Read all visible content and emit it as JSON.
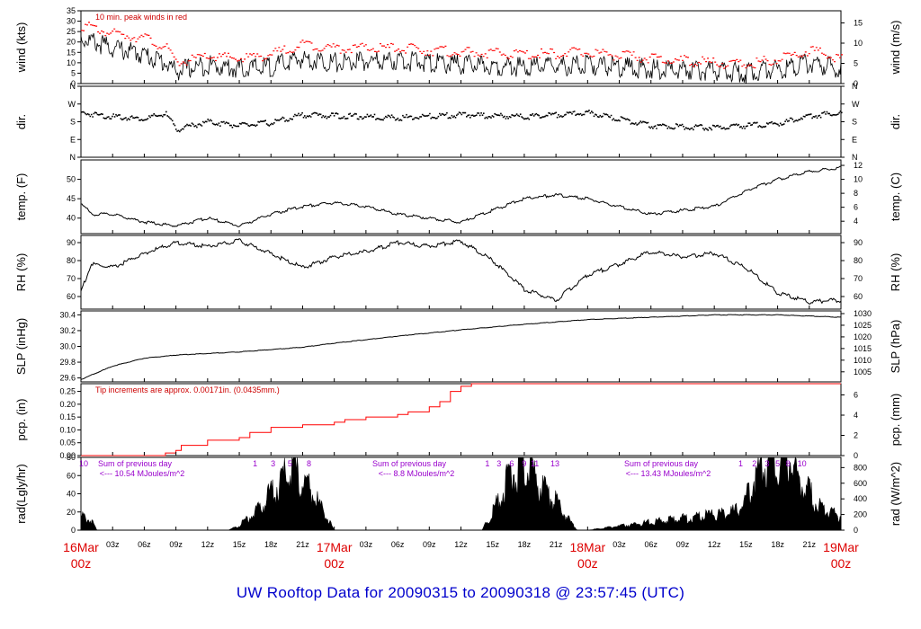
{
  "footer_title": "UW Rooftop Data for 20090315  to  20090318 @ 23:57:45  (UTC)",
  "time_axis": {
    "hour_labels": [
      "03z",
      "06z",
      "09z",
      "12z",
      "15z",
      "18z",
      "21z"
    ],
    "day_labels": [
      {
        "date": "16Mar",
        "hour": "00z"
      },
      {
        "date": "17Mar",
        "hour": "00z"
      },
      {
        "date": "18Mar",
        "hour": "00z"
      },
      {
        "date": "19Mar",
        "hour": "00z"
      }
    ]
  },
  "colors": {
    "axis": "#000000",
    "peak": "#ff0000",
    "precip": "#ff0000",
    "note": "#cc0000",
    "radiation_note": "#9900cc",
    "footer": "#0000cc"
  },
  "chart_data": [
    {
      "type": "line",
      "id": "wind",
      "ylabel": "wind (kts)",
      "ylabel_right": "wind (m/s)",
      "ylim": [
        0,
        35
      ],
      "yticks": [
        0,
        5,
        10,
        15,
        20,
        25,
        30,
        35
      ],
      "yticks_right": [
        0,
        5,
        10,
        15
      ],
      "annotation": "10 min. peak winds in red",
      "series": [
        {
          "name": "10 min. peak winds",
          "color": "#ff0000"
        }
      ],
      "x_hours": [
        0,
        3,
        6,
        8,
        9,
        12,
        15,
        18,
        21,
        24,
        30,
        36,
        42,
        48,
        54,
        60,
        63,
        66,
        69,
        72
      ],
      "values": [
        22,
        17,
        14,
        10,
        6,
        9,
        7,
        8,
        12,
        10,
        11,
        9,
        8,
        9,
        7,
        6,
        5,
        7,
        10,
        7
      ],
      "peak_values": [
        28,
        24,
        22,
        17,
        10,
        13,
        12,
        14,
        19,
        17,
        17,
        15,
        14,
        15,
        12,
        10,
        9,
        12,
        16,
        12
      ]
    },
    {
      "type": "scatter",
      "id": "dir",
      "ylabel": "dir.",
      "ylabel_right": "dir.",
      "yticks": [
        "N",
        "E",
        "S",
        "W",
        "N"
      ],
      "x_hours": [
        0,
        3,
        6,
        8,
        9,
        12,
        15,
        18,
        21,
        24,
        30,
        36,
        42,
        48,
        54,
        60,
        63,
        66,
        69,
        72
      ],
      "values": [
        225,
        205,
        195,
        220,
        140,
        180,
        160,
        175,
        215,
        210,
        200,
        215,
        205,
        225,
        160,
        150,
        160,
        170,
        210,
        225
      ]
    },
    {
      "type": "line",
      "id": "temp",
      "ylabel": "temp. (F)",
      "ylabel_right": "temp. (C)",
      "ylim": [
        36,
        55
      ],
      "yticks": [
        40,
        45,
        50
      ],
      "yticks_right": [
        4,
        6,
        8,
        10,
        12
      ],
      "x_hours": [
        0,
        1,
        3,
        6,
        9,
        12,
        15,
        18,
        21,
        24,
        27,
        30,
        33,
        36,
        39,
        42,
        45,
        48,
        51,
        54,
        57,
        60,
        63,
        66,
        69,
        72
      ],
      "values": [
        44,
        41,
        41,
        39,
        38,
        40,
        38,
        41,
        43,
        44,
        43,
        41,
        40,
        39,
        42,
        45,
        46,
        45,
        43,
        41,
        42,
        43,
        47,
        50,
        52,
        53
      ]
    },
    {
      "type": "line",
      "id": "rh",
      "ylabel": "RH (%)",
      "ylabel_right": "RH (%)",
      "ylim": [
        53,
        94
      ],
      "yticks": [
        60,
        70,
        80,
        90
      ],
      "yticks_right": [
        60,
        70,
        80,
        90
      ],
      "x_hours": [
        0,
        1,
        3,
        6,
        9,
        12,
        15,
        18,
        21,
        24,
        27,
        30,
        33,
        36,
        39,
        42,
        45,
        48,
        51,
        54,
        57,
        60,
        63,
        66,
        69,
        72
      ],
      "values": [
        63,
        78,
        76,
        84,
        90,
        88,
        91,
        84,
        76,
        82,
        85,
        90,
        88,
        91,
        80,
        64,
        58,
        72,
        78,
        85,
        82,
        84,
        76,
        62,
        57,
        58
      ]
    },
    {
      "type": "line",
      "id": "slp",
      "ylabel": "SLP (inHg)",
      "ylabel_right": "SLP (hPa)",
      "ylim": [
        29.55,
        30.45
      ],
      "yticks": [
        29.6,
        29.8,
        30.0,
        30.2,
        30.4
      ],
      "yticks_right": [
        1000,
        1005,
        1010,
        1015,
        1020,
        1025,
        1030
      ],
      "x_hours": [
        0,
        3,
        6,
        9,
        12,
        15,
        18,
        21,
        24,
        30,
        36,
        42,
        48,
        54,
        60,
        66,
        72
      ],
      "values": [
        29.58,
        29.75,
        29.85,
        29.89,
        29.91,
        29.93,
        29.96,
        29.99,
        30.04,
        30.13,
        30.21,
        30.28,
        30.34,
        30.37,
        30.4,
        30.4,
        30.37
      ]
    },
    {
      "type": "line",
      "id": "pcp",
      "ylabel": "pcp. (in)",
      "ylabel_right": "pcp. (mm)",
      "annotation": "Tip increments are approx. 0.00171in. (0.0435mm.)",
      "ylim": [
        0,
        0.28
      ],
      "yticks": [
        0,
        0.05,
        0.1,
        0.15,
        0.2,
        0.25
      ],
      "yticks_right": [
        0,
        2,
        4,
        6
      ],
      "x_hours": [
        0,
        7,
        8,
        9,
        9.5,
        12,
        15,
        16,
        18,
        21,
        24,
        25,
        27,
        30,
        31,
        33,
        34,
        35,
        36,
        37,
        40,
        72
      ],
      "values": [
        0,
        0,
        0.01,
        0.02,
        0.04,
        0.06,
        0.07,
        0.09,
        0.11,
        0.12,
        0.13,
        0.14,
        0.15,
        0.16,
        0.17,
        0.19,
        0.21,
        0.25,
        0.27,
        0.28,
        0.28,
        0.28
      ]
    },
    {
      "type": "area",
      "id": "rad",
      "ylabel": "rad(Lgly/hr)",
      "ylabel_right": "rad (W/m^2)",
      "ylim": [
        0,
        80
      ],
      "yticks": [
        0,
        20,
        40,
        60,
        80
      ],
      "yticks_right": [
        0,
        200,
        400,
        600,
        800
      ],
      "top_left_label": "10",
      "day_marks": [
        {
          "hour": 16.5,
          "text": "1"
        },
        {
          "hour": 18.2,
          "text": "3"
        },
        {
          "hour": 19.8,
          "text": "5"
        },
        {
          "hour": 21.6,
          "text": "8"
        },
        {
          "hour": 38.5,
          "text": "1"
        },
        {
          "hour": 39.6,
          "text": "3"
        },
        {
          "hour": 40.8,
          "text": "6"
        },
        {
          "hour": 42.0,
          "text": "9"
        },
        {
          "hour": 43.0,
          "text": "11"
        },
        {
          "hour": 44.9,
          "text": "13"
        },
        {
          "hour": 62.5,
          "text": "1"
        },
        {
          "hour": 63.8,
          "text": "2"
        },
        {
          "hour": 65.0,
          "text": "3"
        },
        {
          "hour": 66.0,
          "text": "5"
        },
        {
          "hour": 67.0,
          "text": "8"
        },
        {
          "hour": 68.3,
          "text": "10"
        }
      ],
      "daily_sums": [
        {
          "title": "Sum of previous day",
          "value": "<--- 10.54 MJoules/m^2"
        },
        {
          "title": "Sum of previous day",
          "value": "<--- 8.8 MJoules/m^2"
        },
        {
          "title": "Sum of previous day",
          "value": "<--- 13.43 MJoules/m^2"
        }
      ],
      "x_hours": [
        0,
        1,
        1.5,
        2,
        14,
        15,
        16,
        17,
        18,
        19,
        20,
        21,
        22,
        23,
        24,
        38,
        39,
        40,
        41,
        42,
        43,
        44,
        45,
        46,
        47,
        48,
        62,
        63,
        64,
        65,
        66,
        67,
        68,
        69,
        70,
        71,
        72
      ],
      "values": [
        15,
        10,
        0,
        0,
        0,
        5,
        15,
        25,
        40,
        55,
        70,
        50,
        40,
        20,
        0,
        0,
        20,
        45,
        65,
        75,
        55,
        40,
        30,
        15,
        0,
        0,
        20,
        35,
        60,
        75,
        85,
        80,
        60,
        40,
        25,
        20,
        15
      ]
    }
  ]
}
